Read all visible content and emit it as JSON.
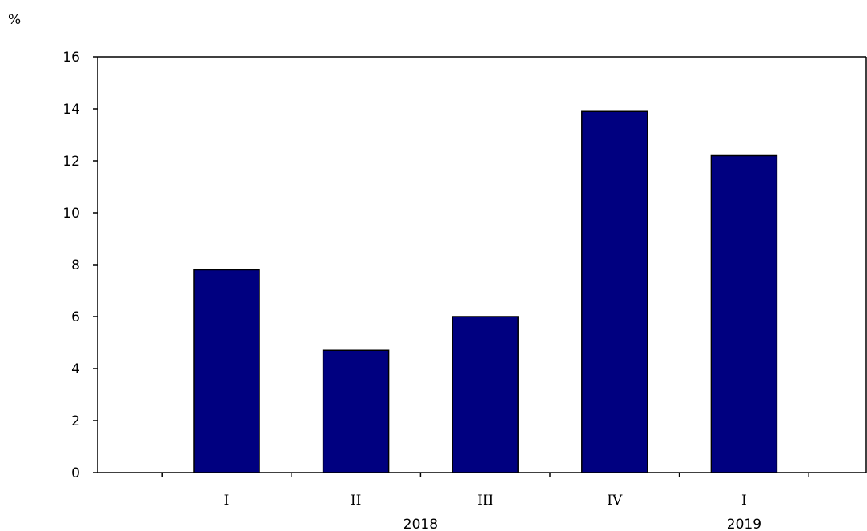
{
  "chart_data": {
    "type": "bar",
    "ylabel": "%",
    "categories": [
      "I",
      "II",
      "III",
      "IV",
      "I"
    ],
    "years": [
      {
        "label": "2018",
        "category_span": [
          0,
          3
        ]
      },
      {
        "label": "2019",
        "category_span": [
          4,
          4
        ]
      }
    ],
    "series": [
      {
        "values": [
          7.8,
          4.7,
          6.0,
          13.9,
          12.2
        ]
      }
    ],
    "ylim": [
      0,
      16
    ],
    "yticks": [
      "0",
      "2",
      "4",
      "6",
      "8",
      "10",
      "12",
      "14",
      "16"
    ],
    "grid": false,
    "legend": "none",
    "bar_color": "#000080",
    "bar_stroke": "#000000"
  }
}
